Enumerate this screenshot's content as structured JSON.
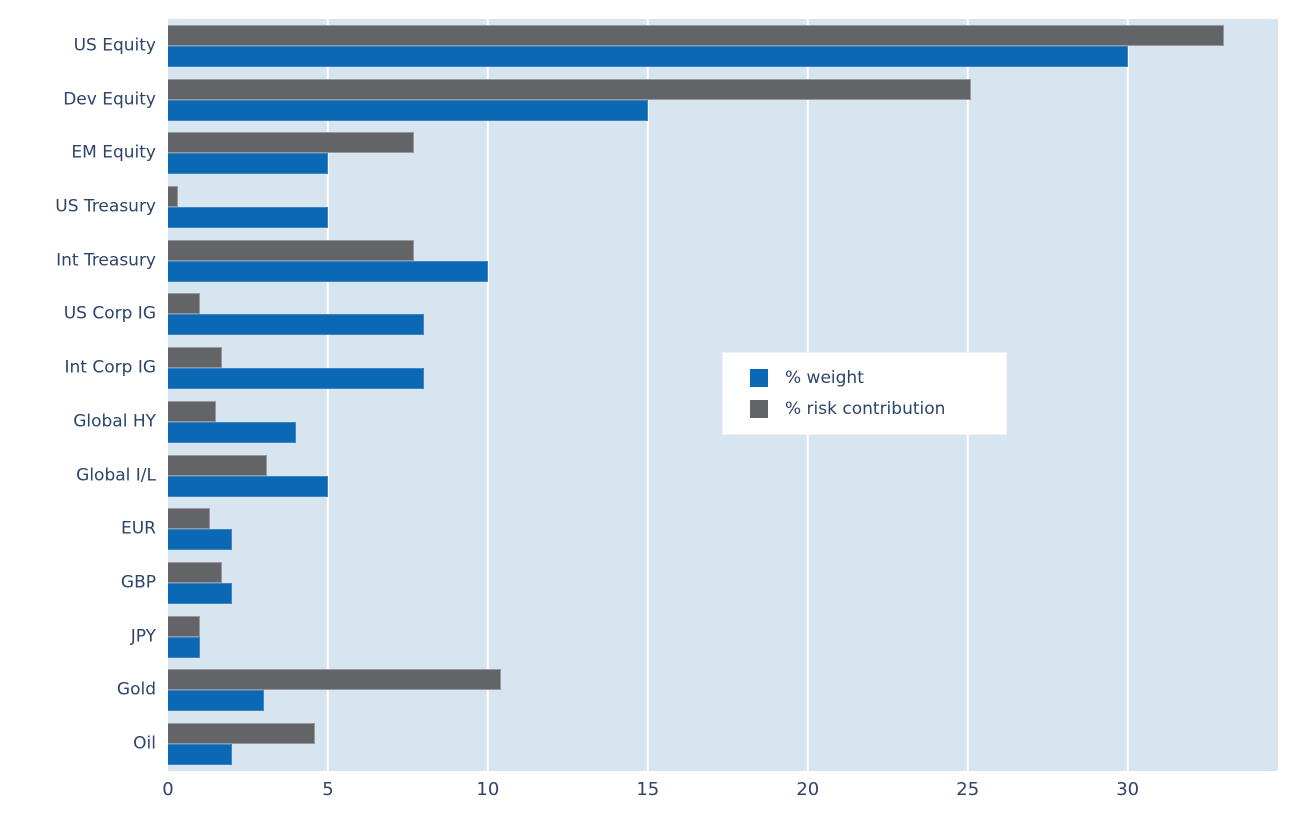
{
  "chart_data": {
    "type": "bar",
    "orientation": "horizontal",
    "title": "",
    "categories": [
      "US Equity",
      "Dev Equity",
      "EM Equity",
      "US Treasury",
      "Int Treasury",
      "US Corp IG",
      "Int Corp IG",
      "Global HY",
      "Global I/L",
      "EUR",
      "GBP",
      "JPY",
      "Gold",
      "Oil"
    ],
    "series": [
      {
        "name": "% weight",
        "color": "#0a68b4",
        "values": [
          30,
          15,
          5,
          5,
          10,
          8,
          8,
          4,
          5,
          2,
          2,
          1,
          3,
          2
        ]
      },
      {
        "name": "% risk contribution",
        "color": "#626468",
        "values": [
          33,
          25.1,
          7.7,
          0.3,
          7.7,
          1.0,
          1.7,
          1.5,
          3.1,
          1.3,
          1.7,
          1.0,
          10.4,
          4.6
        ]
      }
    ],
    "bar_order_top_to_bottom_per_category": [
      "% risk contribution",
      "% weight"
    ],
    "x_ticks": [
      0,
      5,
      10,
      15,
      20,
      25,
      30
    ],
    "xlim": [
      0,
      34.7
    ],
    "xlabel": "",
    "ylabel": "",
    "grid": true,
    "gridline_color": "#ffffff",
    "legend_position": "center-right",
    "plot_bg": "#d7e5f1",
    "fig_bg": "#ffffff",
    "text_color": "#2e4469"
  }
}
